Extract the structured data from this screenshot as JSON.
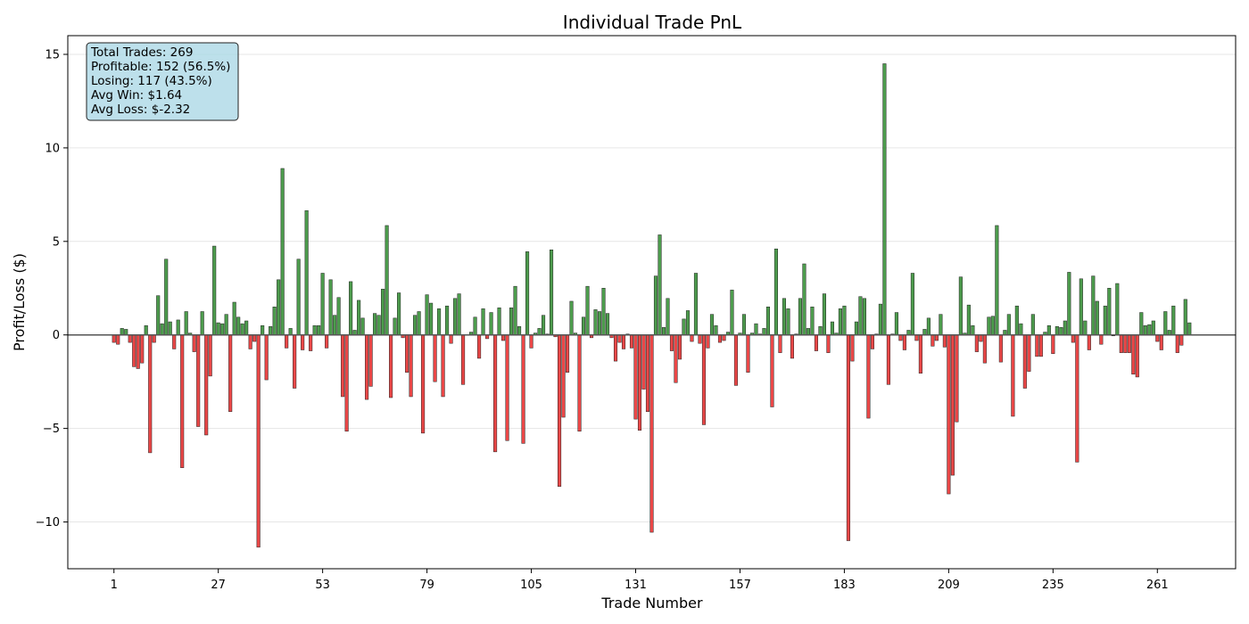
{
  "chart_data": {
    "type": "bar",
    "title": "Individual Trade PnL",
    "xlabel": "Trade Number",
    "ylabel": "Profit/Loss ($)",
    "xlim": [
      -10.5,
      280.5
    ],
    "ylim": [
      -12.5,
      16
    ],
    "x_ticks": [
      1,
      27,
      53,
      79,
      105,
      131,
      157,
      183,
      209,
      235,
      261
    ],
    "y_ticks": [
      -10,
      -5,
      0,
      5,
      10,
      15
    ],
    "y_tick_labels": [
      "−10",
      "−5",
      "0",
      "5",
      "10",
      "15"
    ],
    "grid": "horizontal",
    "colors": {
      "profit": "#2e8b2e",
      "loss": "#e62727",
      "bar_edge": "#222222",
      "zero_line": "#555555",
      "stats_box_fill": "#add8e6",
      "stats_box_border": "#222222"
    },
    "stats_box": {
      "position": "top-left",
      "lines": [
        "Total Trades: 269",
        "Profitable: 152 (56.5%)",
        "Losing: 117 (43.5%)",
        "Avg Win: $1.64",
        "Avg Loss: $-2.32"
      ]
    },
    "x": [
      1,
      2,
      3,
      4,
      5,
      6,
      7,
      8,
      9,
      10,
      11,
      12,
      13,
      14,
      15,
      16,
      17,
      18,
      19,
      20,
      21,
      22,
      23,
      24,
      25,
      26,
      27,
      28,
      29,
      30,
      31,
      32,
      33,
      34,
      35,
      36,
      37,
      38,
      39,
      40,
      41,
      42,
      43,
      44,
      45,
      46,
      47,
      48,
      49,
      50,
      51,
      52,
      53,
      54,
      55,
      56,
      57,
      58,
      59,
      60,
      61,
      62,
      63,
      64,
      65,
      66,
      67,
      68,
      69,
      70,
      71,
      72,
      73,
      74,
      75,
      76,
      77,
      78,
      79,
      80,
      81,
      82,
      83,
      84,
      85,
      86,
      87,
      88,
      89,
      90,
      91,
      92,
      93,
      94,
      95,
      96,
      97,
      98,
      99,
      100,
      101,
      102,
      103,
      104,
      105,
      106,
      107,
      108,
      109,
      110,
      111,
      112,
      113,
      114,
      115,
      116,
      117,
      118,
      119,
      120,
      121,
      122,
      123,
      124,
      125,
      126,
      127,
      128,
      129,
      130,
      131,
      132,
      133,
      134,
      135,
      136,
      137,
      138,
      139,
      140,
      141,
      142,
      143,
      144,
      145,
      146,
      147,
      148,
      149,
      150,
      151,
      152,
      153,
      154,
      155,
      156,
      157,
      158,
      159,
      160,
      161,
      162,
      163,
      164,
      165,
      166,
      167,
      168,
      169,
      170,
      171,
      172,
      173,
      174,
      175,
      176,
      177,
      178,
      179,
      180,
      181,
      182,
      183,
      184,
      185,
      186,
      187,
      188,
      189,
      190,
      191,
      192,
      193,
      194,
      195,
      196,
      197,
      198,
      199,
      200,
      201,
      202,
      203,
      204,
      205,
      206,
      207,
      208,
      209,
      210,
      211,
      212,
      213,
      214,
      215,
      216,
      217,
      218,
      219,
      220,
      221,
      222,
      223,
      224,
      225,
      226,
      227,
      228,
      229,
      230,
      231,
      232,
      233,
      234,
      235,
      236,
      237,
      238,
      239,
      240,
      241,
      242,
      243,
      244,
      245,
      246,
      247,
      248,
      249,
      250,
      251,
      252,
      253,
      254,
      255,
      256,
      257,
      258,
      259,
      260,
      261,
      262,
      263,
      264,
      265,
      266,
      267,
      268,
      269
    ],
    "values": [
      -0.4,
      -0.5,
      0.35,
      0.3,
      -0.4,
      -1.7,
      -1.8,
      -1.5,
      0.5,
      -6.3,
      -0.4,
      2.1,
      0.6,
      4.05,
      0.7,
      -0.75,
      0.8,
      -7.1,
      1.25,
      0.1,
      -0.9,
      -4.9,
      1.25,
      -5.35,
      -2.2,
      4.75,
      0.65,
      0.6,
      1.1,
      -4.1,
      1.75,
      0.95,
      0.6,
      0.75,
      -0.75,
      -0.35,
      -11.35,
      0.5,
      -2.4,
      0.45,
      1.5,
      2.95,
      8.9,
      -0.7,
      0.35,
      -2.85,
      4.05,
      -0.8,
      6.65,
      -0.85,
      0.5,
      0.5,
      3.3,
      -0.7,
      2.95,
      1.05,
      2.0,
      -3.3,
      -5.15,
      2.85,
      0.25,
      1.85,
      0.9,
      -3.45,
      -2.75,
      1.15,
      1.05,
      2.45,
      5.85,
      -3.35,
      0.9,
      2.25,
      -0.15,
      -2.0,
      -3.3,
      1.05,
      1.25,
      -5.25,
      2.15,
      1.7,
      -2.5,
      1.4,
      -3.3,
      1.55,
      -0.45,
      1.95,
      2.2,
      -2.65,
      0.0,
      0.15,
      0.95,
      -1.25,
      1.4,
      -0.2,
      1.2,
      -6.25,
      1.45,
      -0.3,
      -5.65,
      1.45,
      2.6,
      0.45,
      -5.8,
      4.45,
      -0.7,
      0.1,
      0.35,
      1.05,
      0.05,
      4.55,
      -0.1,
      -8.1,
      -4.4,
      -2.0,
      1.8,
      0.1,
      -5.15,
      0.95,
      2.6,
      -0.15,
      1.35,
      1.25,
      2.5,
      1.15,
      -0.15,
      -1.4,
      -0.4,
      -0.75,
      0.05,
      -0.7,
      -4.5,
      -5.1,
      -2.9,
      -4.1,
      -10.55,
      3.15,
      5.35,
      0.4,
      1.95,
      -0.85,
      -2.55,
      -1.3,
      0.85,
      1.3,
      -0.35,
      3.3,
      -0.45,
      -4.8,
      -0.7,
      1.1,
      0.5,
      -0.4,
      -0.3,
      0.15,
      2.4,
      -2.7,
      0.1,
      1.1,
      -2.0,
      0.1,
      0.6,
      0.05,
      0.35,
      1.5,
      -3.85,
      4.6,
      -0.95,
      1.95,
      1.4,
      -1.25,
      0.05,
      1.95,
      3.8,
      0.35,
      1.5,
      -0.85,
      0.45,
      2.2,
      -0.95,
      0.7,
      0.1,
      1.4,
      1.55,
      -11.0,
      -1.4,
      0.7,
      2.05,
      1.95,
      -4.45,
      -0.75,
      0.05,
      1.65,
      14.5,
      -2.65,
      0.05,
      1.2,
      -0.3,
      -0.8,
      0.25,
      3.3,
      -0.3,
      -2.05,
      0.3,
      0.9,
      -0.6,
      -0.3,
      1.1,
      -0.65,
      -8.5,
      -7.5,
      -4.65,
      3.1,
      0.1,
      1.6,
      0.5,
      -0.9,
      -0.35,
      -1.5,
      0.95,
      1.0,
      5.85,
      -1.45,
      0.25,
      1.1,
      -4.35,
      1.55,
      0.6,
      -2.85,
      -1.95,
      1.1,
      -1.15,
      -1.15,
      0.15,
      0.5,
      -1.0,
      0.45,
      0.4,
      0.75,
      3.35,
      -0.4,
      -6.8,
      3.0,
      0.75,
      -0.8,
      3.15,
      1.8,
      -0.5,
      1.55,
      2.5,
      -0.05,
      2.75,
      -0.95,
      -0.95,
      -0.95,
      -2.1,
      -2.25,
      1.2,
      0.5,
      0.55,
      0.75,
      -0.35,
      -0.8,
      1.25,
      0.25,
      1.55,
      -0.95,
      -0.55,
      1.9,
      0.65
    ]
  }
}
